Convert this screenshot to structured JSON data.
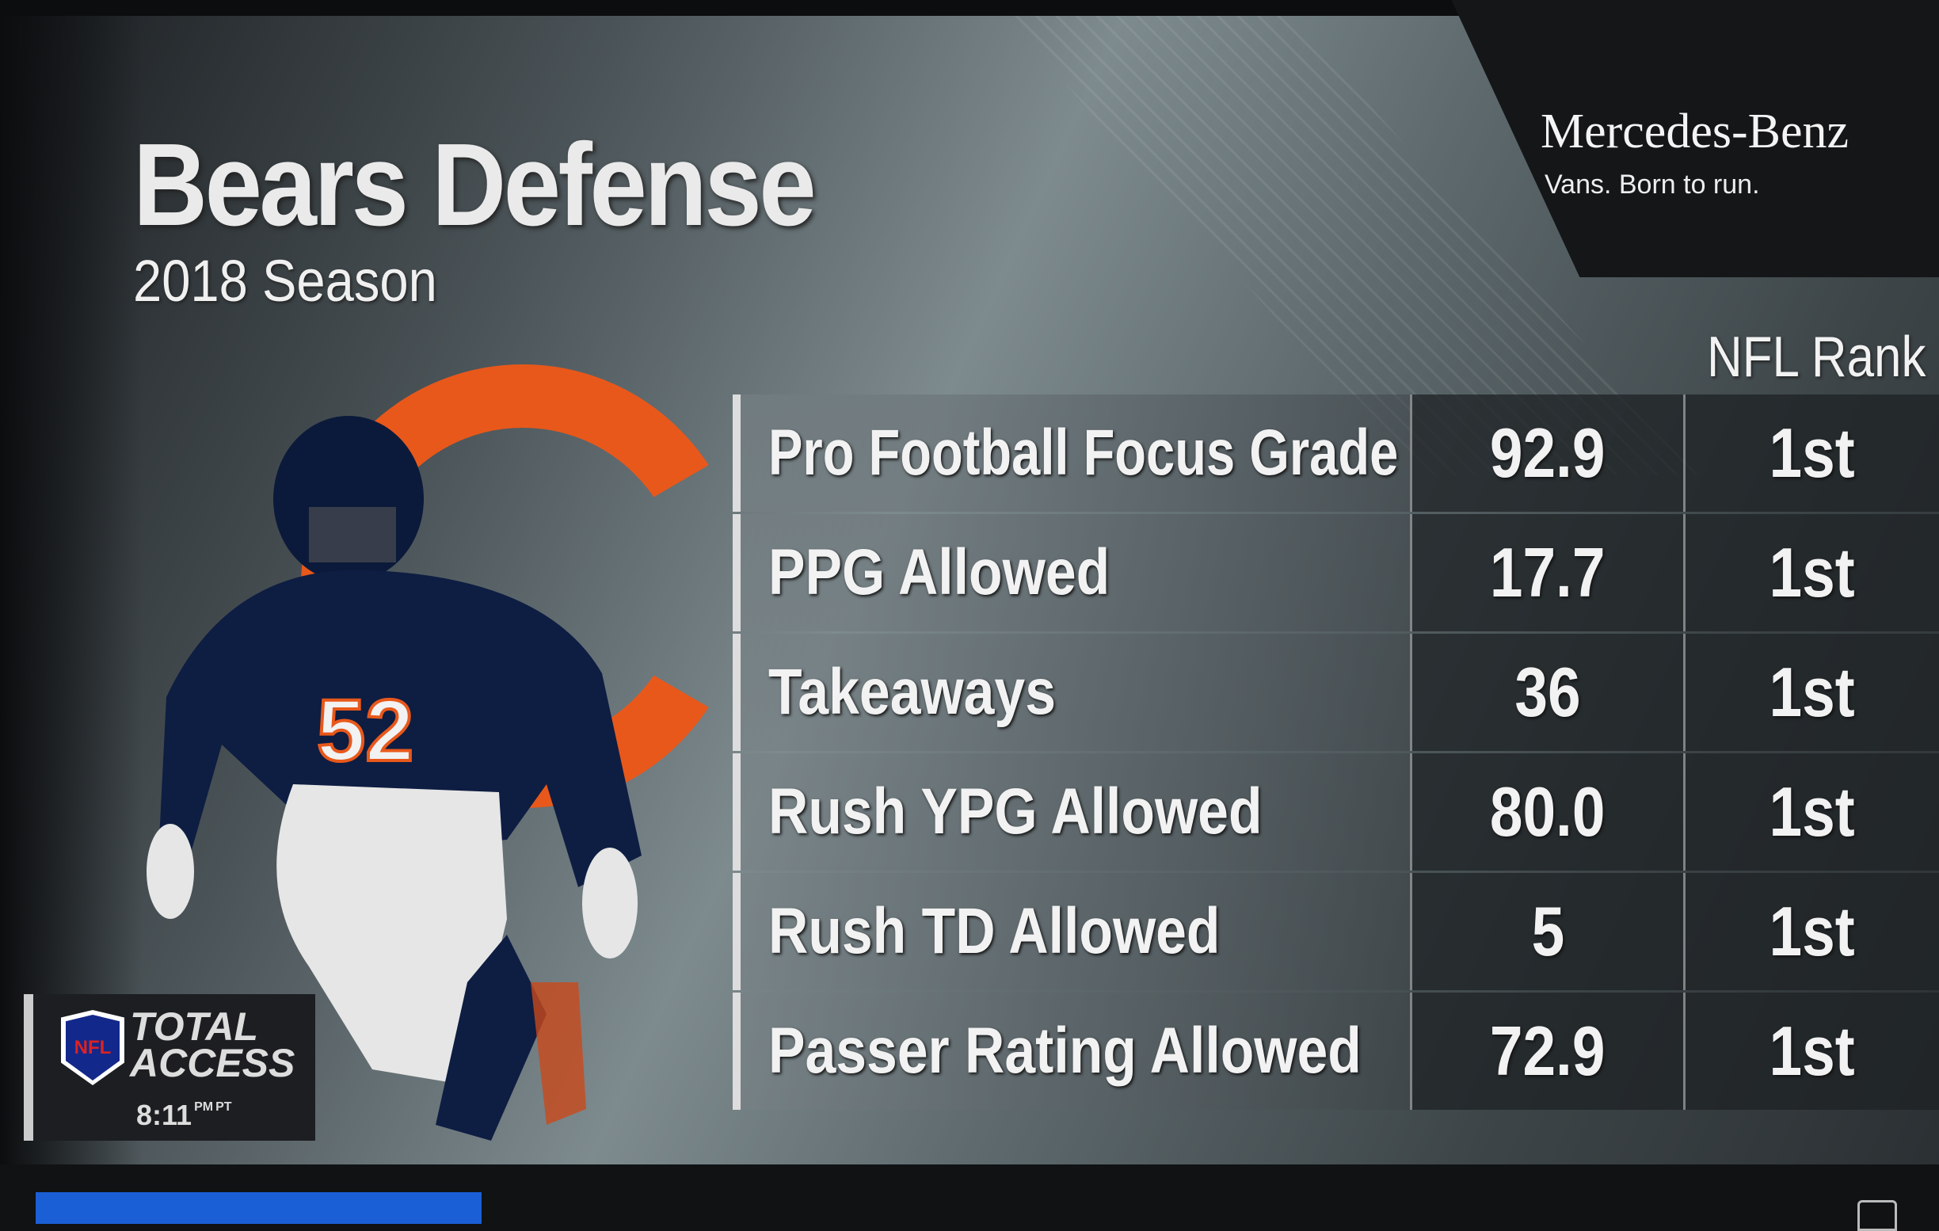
{
  "header": {
    "title": "Bears Defense",
    "subtitle": "2018 Season"
  },
  "sponsor": {
    "brand": "Mercedes-Benz",
    "tagline": "Vans. Born to run."
  },
  "table": {
    "rank_header": "NFL Rank",
    "rows": [
      {
        "label": "Pro Football Focus Grade",
        "value": "92.9",
        "rank": "1st"
      },
      {
        "label": "PPG Allowed",
        "value": "17.7",
        "rank": "1st"
      },
      {
        "label": "Takeaways",
        "value": "36",
        "rank": "1st"
      },
      {
        "label": "Rush YPG Allowed",
        "value": "80.0",
        "rank": "1st"
      },
      {
        "label": "Rush TD Allowed",
        "value": "5",
        "rank": "1st"
      },
      {
        "label": "Passer Rating Allowed",
        "value": "72.9",
        "rank": "1st"
      }
    ]
  },
  "bug": {
    "show": "TOTAL ACCESS",
    "league": "NFL",
    "time": "8:11",
    "ampm": "PM",
    "tz": "PT"
  },
  "player": {
    "number": "52"
  },
  "colors": {
    "bears_orange": "#e8581b",
    "bears_navy": "#0b1a3a",
    "progress_blue": "#1a5fd6"
  },
  "progress": {
    "fraction": 0.23
  }
}
